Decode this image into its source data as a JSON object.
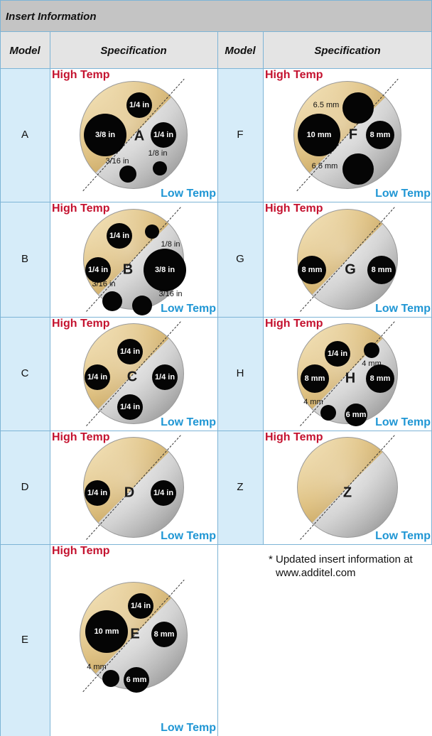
{
  "header": {
    "title": "Insert Information"
  },
  "columns": [
    "Model",
    "Specification",
    "Model",
    "Specification"
  ],
  "zones": {
    "high": "High Temp",
    "low": "Low Temp"
  },
  "inserts": [
    {
      "model": "A",
      "holes": [
        "1/4 in",
        "3/8 in",
        "1/4 in",
        "3/16 in",
        "1/8 in"
      ]
    },
    {
      "model": "B",
      "holes": [
        "1/4 in",
        "1/8 in",
        "1/4 in",
        "3/8 in",
        "3/16 in",
        "3/16 in"
      ]
    },
    {
      "model": "C",
      "holes": [
        "1/4 in",
        "1/4 in",
        "1/4 in",
        "1/4 in"
      ]
    },
    {
      "model": "D",
      "holes": [
        "1/4 in",
        "1/4 in"
      ]
    },
    {
      "model": "E",
      "holes": [
        "1/4 in",
        "10 mm",
        "8 mm",
        "4 mm",
        "6 mm"
      ]
    },
    {
      "model": "F",
      "holes": [
        "6.5 mm",
        "10 mm",
        "8 mm",
        "6.5 mm"
      ]
    },
    {
      "model": "G",
      "holes": [
        "8 mm",
        "8 mm"
      ]
    },
    {
      "model": "H",
      "holes": [
        "1/4 in",
        "4 mm",
        "8 mm",
        "8 mm",
        "4 mm",
        "6 mm"
      ]
    },
    {
      "model": "Z",
      "holes": []
    }
  ],
  "note": "* Updated insert information at www.additel.com"
}
